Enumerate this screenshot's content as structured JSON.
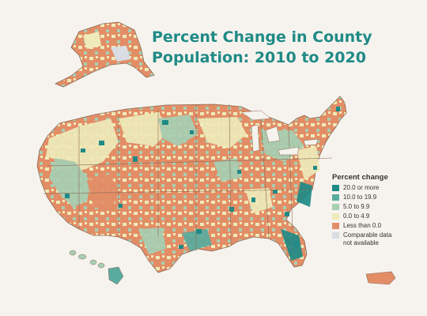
{
  "title_line1": "Percent Change in County",
  "title_line2": "Population: 2010 to 2020",
  "legend": {
    "title": "Percent change",
    "items": [
      {
        "label": "20.0 or more",
        "color": "#1f8a86"
      },
      {
        "label": "10.0 to 19.9",
        "color": "#5aab9f"
      },
      {
        "label": "5.0 to 9.9",
        "color": "#a7cfb2"
      },
      {
        "label": "0.0 to 4.9",
        "color": "#eeeab9"
      },
      {
        "label": "Less than 0.0",
        "color": "#e38d66"
      },
      {
        "label": "Comparable data\nnot available",
        "color": "#d9dce2"
      }
    ]
  },
  "colors": {
    "background": "#f6f3ee",
    "title": "#1f8a86",
    "state_border": "#8a6a55",
    "map_base": "#e38d66"
  }
}
